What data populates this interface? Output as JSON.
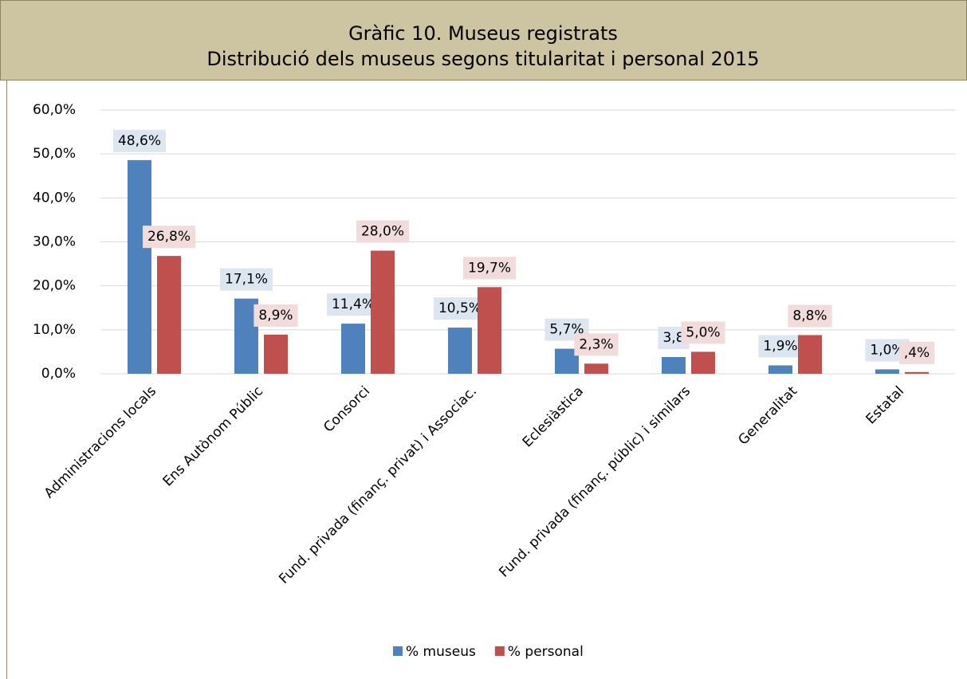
{
  "chart_data": {
    "type": "bar",
    "title": "Gràfic 10. Museus registrats",
    "subtitle": "Distribució dels museus segons titularitat i personal 2015",
    "categories": [
      "Administracions locals",
      "Ens Autònom Públic",
      "Consorci",
      "Fund. privada (finanç. privat) i Associac.",
      "Eclesiàstica",
      "Fund. privada (finanç. públic) i similars",
      "Generalitat",
      "Estatal"
    ],
    "series": [
      {
        "name": "% museus",
        "color": "#4f81bd",
        "values": [
          48.6,
          17.1,
          11.4,
          10.5,
          5.7,
          3.8,
          1.9,
          1.0
        ],
        "value_labels": [
          "48,6%",
          "17,1%",
          "11,4%",
          "10,5%",
          "5,7%",
          "3,8",
          "1,9%",
          "1,0%"
        ]
      },
      {
        "name": "% personal",
        "color": "#c0504d",
        "values": [
          26.8,
          8.9,
          28.0,
          19.7,
          2.3,
          5.0,
          8.8,
          0.4
        ],
        "value_labels": [
          "26,8%",
          "8,9%",
          "28,0%",
          "19,7%",
          "2,3%",
          "5,0%",
          "8,8%",
          ",4%"
        ]
      }
    ],
    "ylim": [
      0,
      60
    ],
    "yticks": [
      {
        "value": 0,
        "label": "0,0%"
      },
      {
        "value": 10,
        "label": "10,0%"
      },
      {
        "value": 20,
        "label": "20,0%"
      },
      {
        "value": 30,
        "label": "30,0%"
      },
      {
        "value": 40,
        "label": "40,0%"
      },
      {
        "value": 50,
        "label": "50,0%"
      },
      {
        "value": 60,
        "label": "60,0%"
      }
    ],
    "grid": true,
    "legend": "bottom"
  }
}
